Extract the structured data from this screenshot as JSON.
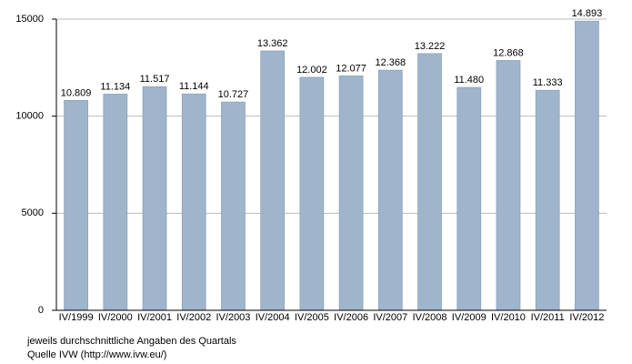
{
  "chart_data": {
    "type": "bar",
    "categories": [
      "IV/1999",
      "IV/2000",
      "IV/2001",
      "IV/2002",
      "IV/2003",
      "IV/2004",
      "IV/2005",
      "IV/2006",
      "IV/2007",
      "IV/2008",
      "IV/2009",
      "IV/2010",
      "IV/2011",
      "IV/2012"
    ],
    "values": [
      10809,
      11134,
      11517,
      11144,
      10727,
      13362,
      12002,
      12077,
      12368,
      13222,
      11480,
      12868,
      11333,
      14893
    ],
    "value_labels": [
      "10.809",
      "11.134",
      "11.517",
      "11.144",
      "10.727",
      "13.362",
      "12.002",
      "12.077",
      "12.368",
      "13.222",
      "11.480",
      "12.868",
      "11.333",
      "14.893"
    ],
    "color": "#9fb5cc",
    "ylim": [
      0,
      15000
    ],
    "yticks": [
      0,
      5000,
      10000,
      15000
    ],
    "grid": true,
    "notes": [
      "jeweils durchschnittliche Angaben des Quartals",
      "Quelle IVW (http://www.ivw.eu/)"
    ]
  }
}
